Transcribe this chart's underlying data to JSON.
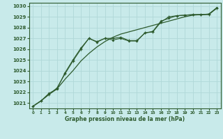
{
  "xlabel": "Graphe pression niveau de la mer (hPa)",
  "bg_color": "#c8eaea",
  "grid_color": "#b0d8d8",
  "line_color": "#2d5a2d",
  "xlim": [
    -0.5,
    23.5
  ],
  "ylim": [
    1020.5,
    1030.3
  ],
  "yticks": [
    1021,
    1022,
    1023,
    1024,
    1025,
    1026,
    1027,
    1028,
    1029,
    1030
  ],
  "xticks": [
    0,
    1,
    2,
    3,
    4,
    5,
    6,
    7,
    8,
    9,
    10,
    11,
    12,
    13,
    14,
    15,
    16,
    17,
    18,
    19,
    20,
    21,
    22,
    23
  ],
  "data_x": [
    0,
    1,
    2,
    3,
    4,
    5,
    6,
    7,
    8,
    9,
    10,
    11,
    12,
    13,
    14,
    15,
    16,
    17,
    18,
    19,
    20,
    21,
    22,
    23
  ],
  "line1_y": [
    1020.7,
    1021.2,
    1021.8,
    1022.3,
    1023.2,
    1024.0,
    1024.9,
    1025.6,
    1026.2,
    1026.7,
    1027.1,
    1027.4,
    1027.6,
    1027.8,
    1028.0,
    1028.2,
    1028.4,
    1028.6,
    1028.8,
    1029.0,
    1029.15,
    1029.2,
    1029.25,
    1029.8
  ],
  "line2_y": [
    1020.7,
    1021.2,
    1021.8,
    1022.4,
    1023.7,
    1024.9,
    1026.0,
    1027.0,
    1026.7,
    1027.0,
    1027.0,
    1027.1,
    1026.8,
    1026.8,
    1027.5,
    1027.6,
    1028.5,
    1029.0,
    1029.1,
    1029.15,
    1029.2,
    1029.2,
    1029.2,
    1029.8
  ],
  "line3_y": [
    1020.7,
    1021.2,
    1021.9,
    1022.3,
    1023.8,
    1025.0,
    1026.1,
    1027.0,
    1026.65,
    1027.0,
    1026.85,
    1027.0,
    1026.75,
    1026.75,
    1027.5,
    1027.65,
    1028.6,
    1028.85,
    1029.1,
    1029.15,
    1029.2,
    1029.2,
    1029.25,
    1029.85
  ]
}
